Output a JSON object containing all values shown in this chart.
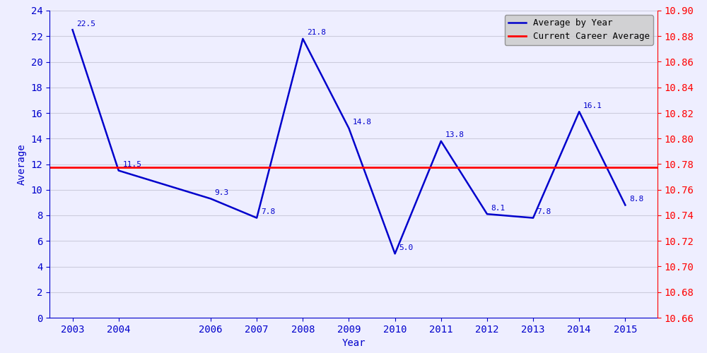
{
  "years": [
    2003,
    2004,
    2006,
    2007,
    2008,
    2009,
    2010,
    2011,
    2012,
    2013,
    2014,
    2015
  ],
  "averages": [
    22.5,
    11.5,
    9.3,
    7.8,
    21.8,
    14.8,
    5.0,
    13.8,
    8.1,
    7.8,
    16.1,
    8.8
  ],
  "career_average": 11.77,
  "ylim_left": [
    0,
    24
  ],
  "ylim_right": [
    10.66,
    10.9
  ],
  "xlabel": "Year",
  "ylabel": "Average",
  "line_color": "#0000cc",
  "career_color": "red",
  "legend_labels": [
    "Average by Year",
    "Current Career Average"
  ],
  "bg_color": "#eeeeff",
  "grid_color": "#ccccdd",
  "label_fontsize": 8,
  "axis_label_color_left": "#0000cc",
  "axis_label_color_right": "red",
  "xlim": [
    2002.5,
    2015.7
  ]
}
